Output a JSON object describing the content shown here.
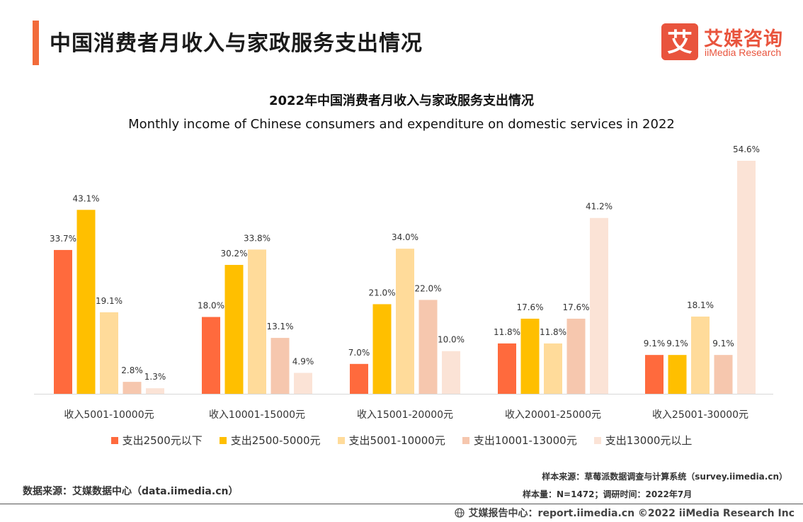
{
  "header": {
    "title": "中国消费者月收入与家政服务支出情况",
    "accent_color": "#f26b3a"
  },
  "logo": {
    "mark_char": "艾",
    "name_cn": "艾媒咨询",
    "name_en": "iiMedia Research",
    "color": "#e9543d"
  },
  "chart_data": {
    "type": "bar",
    "title": "2022年中国消费者月收入与家政服务支出情况",
    "subtitle": "Monthly income of Chinese consumers and expenditure on domestic services in 2022",
    "categories": [
      "收入5001-10000元",
      "收入10001-15000元",
      "收入15001-20000元",
      "收入20001-25000元",
      "收入25001-30000元"
    ],
    "series": [
      {
        "name": "支出2500元以下",
        "color": "#ff6a3d",
        "values": [
          33.7,
          18.0,
          7.0,
          11.8,
          9.1
        ]
      },
      {
        "name": "支出2500-5000元",
        "color": "#ffbf00",
        "values": [
          43.1,
          30.2,
          21.0,
          17.6,
          9.1
        ]
      },
      {
        "name": "支出5001-10000元",
        "color": "#ffdb9a",
        "values": [
          19.1,
          33.8,
          34.0,
          11.8,
          18.1
        ]
      },
      {
        "name": "支出10001-13000元",
        "color": "#f6c7ae",
        "values": [
          2.8,
          13.1,
          22.0,
          17.6,
          9.1
        ]
      },
      {
        "name": "支出13000元以上",
        "color": "#fbe3d6",
        "values": [
          1.3,
          4.9,
          10.0,
          41.2,
          54.6
        ]
      }
    ],
    "value_suffix": "%",
    "ylim": [
      0,
      54.6
    ],
    "grid": false,
    "legend_position": "bottom"
  },
  "sources": {
    "data_source": "数据来源：艾媒数据中心（data.iimedia.cn）",
    "sample_source": "样本来源：草莓派数据调查与计算系统（survey.iimedia.cn）",
    "sample_size": "样本量：N=1472；调研时间：2022年7月"
  },
  "footer": {
    "text": "艾媒报告中心：report.iimedia.cn  ©2022  iiMedia Research  Inc",
    "icon": "globe-icon"
  }
}
